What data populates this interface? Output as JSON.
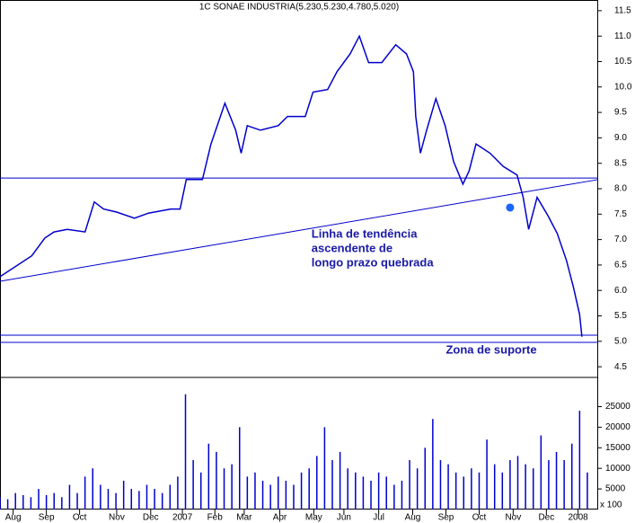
{
  "chart_data": [
    {
      "type": "line",
      "title": "1C SONAE INDUSTRIA(5.230,5.230,4.780,5.020)",
      "series": [
        {
          "name": "SONAE INDUSTRIA",
          "color": "#0000cc",
          "x": [
            0,
            4.1,
            5.8,
            7.0,
            8.7,
            11.0,
            12.2,
            13.4,
            15.1,
            17.4,
            19.2,
            22.1,
            23.3,
            24.1,
            26.2,
            27.3,
            29.1,
            30.5,
            31.2,
            32.0,
            33.7,
            36.0,
            37.2,
            39.5,
            40.5,
            42.4,
            43.6,
            45.3,
            46.5,
            47.7,
            49.4,
            51.2,
            52.6,
            53.5,
            53.8,
            54.4,
            55.2,
            56.4,
            57.6,
            58.7,
            59.9,
            60.7,
            61.6,
            63.4,
            65.1,
            66.9,
            67.7,
            68.4,
            69.5,
            70.9,
            72.1,
            73.3,
            74.2,
            75.0,
            75.3
          ],
          "values": [
            6.27,
            6.68,
            7.03,
            7.15,
            7.2,
            7.15,
            7.74,
            7.6,
            7.54,
            7.42,
            7.52,
            7.6,
            7.6,
            8.18,
            8.18,
            8.88,
            9.68,
            9.15,
            8.7,
            9.24,
            9.15,
            9.24,
            9.42,
            9.42,
            9.9,
            9.95,
            10.3,
            10.65,
            11.0,
            10.48,
            10.48,
            10.83,
            10.65,
            10.3,
            9.42,
            8.7,
            9.15,
            9.77,
            9.24,
            8.53,
            8.09,
            8.35,
            8.88,
            8.7,
            8.44,
            8.27,
            7.83,
            7.2,
            7.83,
            7.47,
            7.12,
            6.59,
            6.06,
            5.53,
            5.09
          ]
        }
      ],
      "hlines": [
        8.21,
        5.12,
        4.98
      ],
      "trendline": {
        "x": [
          0,
          77.4
        ],
        "values": [
          6.18,
          8.18
        ]
      },
      "marker": {
        "x": 66.0,
        "value": 7.63,
        "color": "#1a66ff"
      },
      "annotations": [
        {
          "lines": [
            "Linha de tendência",
            "ascendente de",
            "longo prazo quebrada"
          ],
          "x": 40.3,
          "value": 7.1
        },
        {
          "lines": [
            "Zona de suporte"
          ],
          "x": 57.7,
          "value": 4.82
        }
      ],
      "xlim": [
        0,
        77.4
      ],
      "ylim": [
        4.29,
        11.71
      ],
      "yticks": [
        {
          "value": 4.5,
          "label": "4.5"
        },
        {
          "value": 5,
          "label": "5.0"
        },
        5.5,
        {
          "value": 6,
          "label": "6.0"
        },
        6.5,
        {
          "value": 7,
          "label": "7.0"
        },
        7.5,
        {
          "value": 8,
          "label": "8.0"
        },
        8.5,
        {
          "value": 9,
          "label": "9.0"
        },
        9.5,
        {
          "value": 10,
          "label": "10.0"
        },
        10.5,
        {
          "value": 11,
          "label": "11.0"
        },
        11.5
      ]
    },
    {
      "type": "bar",
      "color": "#0000cc",
      "unit_label": "x 100",
      "x": [
        0,
        1,
        2,
        3,
        4,
        5,
        6,
        7,
        8,
        9,
        10,
        11,
        12,
        13,
        14,
        15,
        16,
        17,
        18,
        19,
        20,
        21,
        22,
        23,
        24,
        25,
        26,
        27,
        28,
        29,
        30,
        31,
        32,
        33,
        34,
        35,
        36,
        37,
        38,
        39,
        40,
        41,
        42,
        43,
        44,
        45,
        46,
        47,
        48,
        49,
        50,
        51,
        52,
        53,
        54,
        55,
        56,
        57,
        58,
        59,
        60,
        61,
        62,
        63,
        64,
        65,
        66,
        67,
        68,
        69,
        70,
        71,
        72,
        73,
        74,
        75,
        76
      ],
      "values": [
        3000,
        2500,
        4000,
        3500,
        3000,
        5000,
        3500,
        4000,
        3000,
        6000,
        4000,
        8000,
        10000,
        6000,
        5000,
        4000,
        7000,
        5000,
        4500,
        6000,
        5000,
        4000,
        6000,
        8000,
        28000,
        12000,
        9000,
        16000,
        14000,
        10000,
        11000,
        20000,
        8000,
        9000,
        7000,
        6000,
        8000,
        7000,
        6000,
        9000,
        10000,
        13000,
        20000,
        12000,
        14000,
        10000,
        9000,
        8000,
        7000,
        9000,
        8000,
        6000,
        7000,
        12000,
        10000,
        15000,
        22000,
        12000,
        11000,
        9000,
        8000,
        10000,
        9000,
        17000,
        11000,
        9000,
        12000,
        13000,
        11000,
        10000,
        18000,
        12000,
        14000,
        12000,
        16000,
        24000,
        9000
      ],
      "xlim": [
        0,
        77.4
      ],
      "ylim": [
        0,
        31000
      ],
      "yticks": [
        5000,
        10000,
        15000,
        20000,
        25000
      ],
      "xticks": [
        {
          "value": 1.7,
          "label": "Aug"
        },
        {
          "value": 6.0,
          "label": "Sep"
        },
        {
          "value": 10.3,
          "label": "Oct"
        },
        {
          "value": 15.1,
          "label": "Nov"
        },
        {
          "value": 19.5,
          "label": "Dec"
        },
        {
          "value": 23.6,
          "label": "2007"
        },
        {
          "value": 27.8,
          "label": "Feb"
        },
        {
          "value": 31.6,
          "label": "Mar"
        },
        {
          "value": 36.2,
          "label": "Apr"
        },
        {
          "value": 40.6,
          "label": "May"
        },
        {
          "value": 44.5,
          "label": "Jun"
        },
        {
          "value": 49.0,
          "label": "Jul"
        },
        {
          "value": 53.4,
          "label": "Aug"
        },
        {
          "value": 57.7,
          "label": "Sep"
        },
        {
          "value": 62.0,
          "label": "Oct"
        },
        {
          "value": 66.4,
          "label": "Nov"
        },
        {
          "value": 70.7,
          "label": "Dec"
        },
        {
          "value": 74.8,
          "label": "2008"
        }
      ]
    }
  ]
}
